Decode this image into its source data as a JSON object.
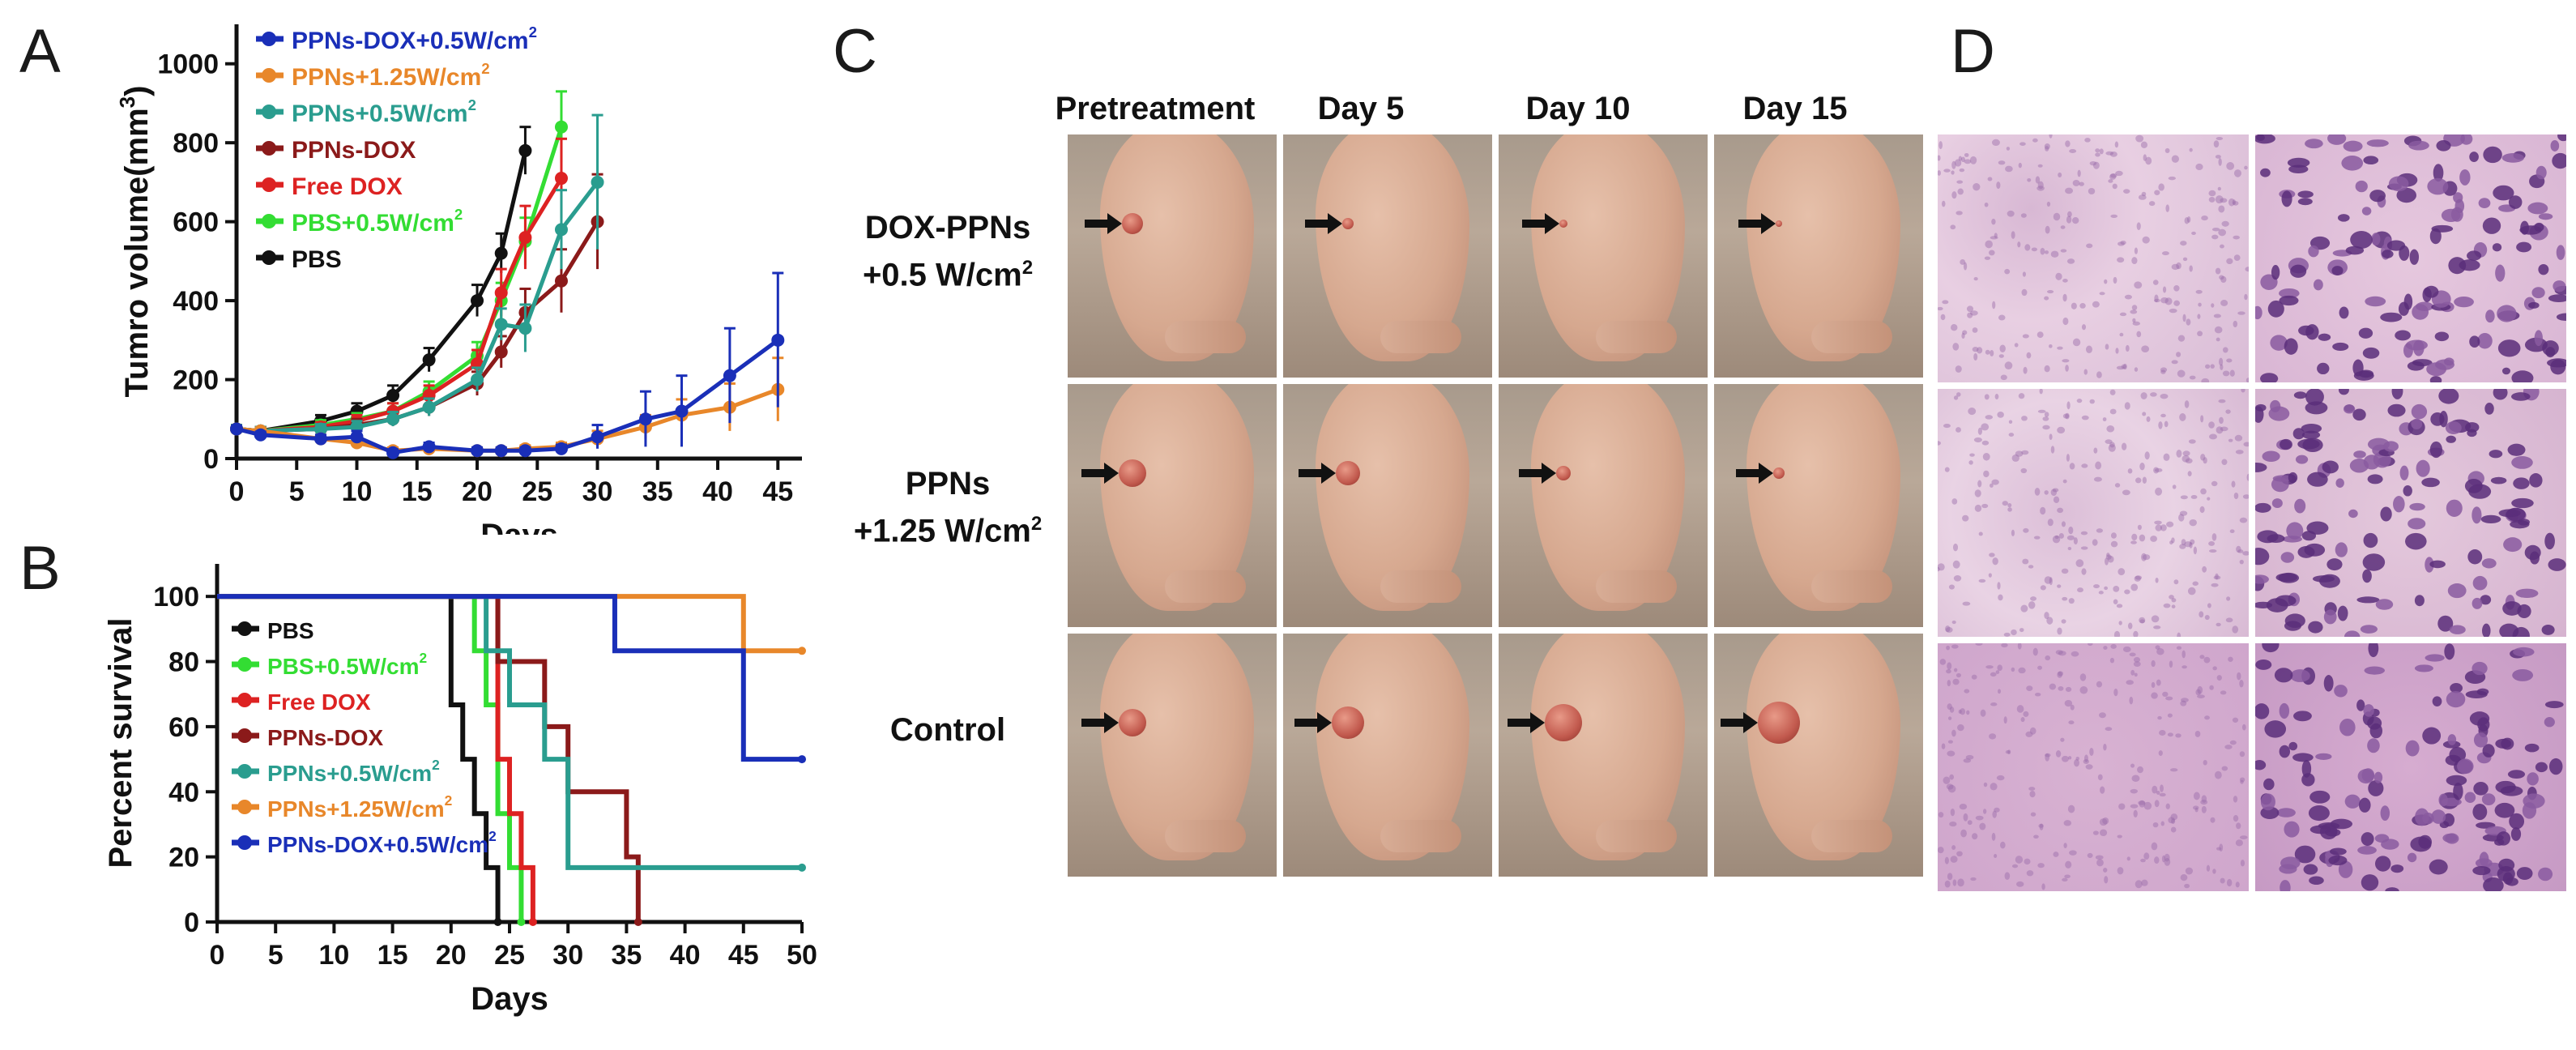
{
  "panels": {
    "a": "A",
    "b": "B",
    "c": "C",
    "d": "D"
  },
  "colors": {
    "PBS": "#111111",
    "PBS+0.5W/cm2": "#33dd33",
    "Free DOX": "#dd2222",
    "PPNs-DOX": "#8b1a1a",
    "PPNs+0.5W/cm2": "#2a9d8f",
    "PPNs+1.25W/cm2": "#e8872a",
    "PPNs-DOX+0.5W/cm2": "#1a2fb8"
  },
  "chart_data": [
    {
      "type": "line",
      "xlabel": "Days",
      "ylabel": "Tumro volume(mm",
      "ylabel_sup": "3",
      "ylabel_close": ")",
      "xlim": [
        0,
        47
      ],
      "ylim": [
        0,
        1100
      ],
      "xticks": [
        "0",
        "5",
        "10",
        "15",
        "20",
        "25",
        "30",
        "35",
        "40",
        "45"
      ],
      "yticks": [
        "0",
        "200",
        "400",
        "600",
        "800",
        "1000"
      ],
      "legend": [
        {
          "base": "PPNs-DOX+0.5W/cm",
          "sup": "2",
          "series": "PPNs-DOX+0.5W/cm2"
        },
        {
          "base": "PPNs+1.25W/cm",
          "sup": "2",
          "series": "PPNs+1.25W/cm2"
        },
        {
          "base": "PPNs+0.5W/cm",
          "sup": "2",
          "series": "PPNs+0.5W/cm2"
        },
        {
          "base": "PPNs-DOX",
          "sup": "",
          "series": "PPNs-DOX"
        },
        {
          "base": "Free DOX",
          "sup": "",
          "series": "Free DOX"
        },
        {
          "base": "PBS+0.5W/cm",
          "sup": "2",
          "series": "PBS+0.5W/cm2"
        },
        {
          "base": "PBS",
          "sup": "",
          "series": "PBS"
        }
      ],
      "series": [
        {
          "key": "PBS",
          "x": [
            0,
            2,
            7,
            10,
            13,
            16,
            20,
            22,
            24
          ],
          "y": [
            75,
            70,
            95,
            120,
            160,
            250,
            400,
            520,
            780
          ],
          "err": [
            10,
            10,
            15,
            20,
            25,
            30,
            40,
            50,
            60
          ]
        },
        {
          "key": "PBS+0.5W/cm2",
          "x": [
            0,
            2,
            7,
            10,
            13,
            16,
            20,
            22,
            24,
            27
          ],
          "y": [
            75,
            70,
            85,
            100,
            120,
            170,
            260,
            400,
            550,
            840
          ],
          "err": [
            10,
            10,
            12,
            15,
            20,
            25,
            35,
            45,
            60,
            90
          ]
        },
        {
          "key": "Free DOX",
          "x": [
            0,
            2,
            7,
            10,
            13,
            16,
            20,
            22,
            24,
            27
          ],
          "y": [
            75,
            70,
            80,
            95,
            120,
            160,
            240,
            420,
            560,
            710
          ],
          "err": [
            10,
            10,
            12,
            15,
            20,
            25,
            35,
            60,
            80,
            100
          ]
        },
        {
          "key": "PPNs-DOX",
          "x": [
            0,
            2,
            7,
            10,
            13,
            16,
            20,
            22,
            24,
            27,
            30
          ],
          "y": [
            75,
            70,
            75,
            85,
            100,
            130,
            190,
            270,
            370,
            450,
            600
          ],
          "err": [
            10,
            10,
            12,
            15,
            18,
            22,
            30,
            40,
            60,
            80,
            120
          ]
        },
        {
          "key": "PPNs+0.5W/cm2",
          "x": [
            0,
            2,
            7,
            10,
            13,
            16,
            20,
            22,
            24,
            27,
            30
          ],
          "y": [
            75,
            70,
            75,
            80,
            100,
            130,
            200,
            340,
            330,
            580,
            700
          ],
          "err": [
            10,
            10,
            12,
            15,
            18,
            22,
            30,
            40,
            60,
            100,
            170
          ]
        },
        {
          "key": "PPNs+1.25W/cm2",
          "x": [
            0,
            2,
            7,
            10,
            13,
            16,
            20,
            22,
            24,
            27,
            30,
            34,
            37,
            41,
            45
          ],
          "y": [
            75,
            70,
            50,
            40,
            20,
            25,
            20,
            20,
            25,
            30,
            50,
            80,
            110,
            130,
            175
          ],
          "err": [
            8,
            8,
            10,
            10,
            8,
            8,
            8,
            8,
            8,
            10,
            20,
            30,
            40,
            60,
            80
          ]
        },
        {
          "key": "PPNs-DOX+0.5W/cm2",
          "x": [
            0,
            2,
            7,
            10,
            13,
            16,
            20,
            22,
            24,
            27,
            30,
            34,
            37,
            41,
            45
          ],
          "y": [
            75,
            60,
            50,
            55,
            15,
            30,
            20,
            20,
            20,
            25,
            55,
            100,
            120,
            210,
            300
          ],
          "err": [
            8,
            8,
            10,
            15,
            8,
            10,
            8,
            8,
            8,
            10,
            30,
            70,
            90,
            120,
            170
          ]
        }
      ]
    },
    {
      "type": "line",
      "step": true,
      "xlabel": "Days",
      "ylabel": "Percent survival",
      "xlim": [
        0,
        50
      ],
      "ylim": [
        0,
        110
      ],
      "xticks": [
        "0",
        "5",
        "10",
        "15",
        "20",
        "25",
        "30",
        "35",
        "40",
        "45",
        "50"
      ],
      "yticks": [
        "0",
        "20",
        "40",
        "60",
        "80",
        "100"
      ],
      "legend": [
        {
          "base": "PBS",
          "sup": "",
          "series": "PBS"
        },
        {
          "base": "PBS+0.5W/cm",
          "sup": "2",
          "series": "PBS+0.5W/cm2"
        },
        {
          "base": "Free DOX",
          "sup": "",
          "series": "Free DOX"
        },
        {
          "base": "PPNs-DOX",
          "sup": "",
          "series": "PPNs-DOX"
        },
        {
          "base": "PPNs+0.5W/cm",
          "sup": "2",
          "series": "PPNs+0.5W/cm2"
        },
        {
          "base": "PPNs+1.25W/cm",
          "sup": "2",
          "series": "PPNs+1.25W/cm2"
        },
        {
          "base": "PPNs-DOX+0.5W/cm",
          "sup": "2",
          "series": "PPNs-DOX+0.5W/cm2"
        }
      ],
      "series": [
        {
          "key": "PBS",
          "x": [
            0,
            20,
            21,
            22,
            23,
            24
          ],
          "y": [
            100,
            66.7,
            50,
            33.3,
            16.7,
            0
          ]
        },
        {
          "key": "PBS+0.5W/cm2",
          "x": [
            0,
            22,
            23,
            24,
            25,
            26
          ],
          "y": [
            100,
            83.3,
            66.7,
            33.3,
            16.7,
            0
          ]
        },
        {
          "key": "Free DOX",
          "x": [
            0,
            24,
            25,
            26,
            27
          ],
          "y": [
            100,
            50,
            33.3,
            16.7,
            0
          ]
        },
        {
          "key": "PPNs-DOX",
          "x": [
            0,
            24,
            26,
            28,
            30,
            35,
            36
          ],
          "y": [
            100,
            80,
            80,
            60,
            40,
            20,
            0
          ]
        },
        {
          "key": "PPNs+0.5W/cm2",
          "x": [
            0,
            23,
            25,
            28,
            30,
            50
          ],
          "y": [
            100,
            83.3,
            66.7,
            50,
            16.7,
            16.7
          ]
        },
        {
          "key": "PPNs+1.25W/cm2",
          "x": [
            0,
            45,
            50
          ],
          "y": [
            100,
            83.3,
            83.3
          ]
        },
        {
          "key": "PPNs-DOX+0.5W/cm2",
          "x": [
            0,
            34,
            45,
            50
          ],
          "y": [
            100,
            83.3,
            50,
            50
          ]
        }
      ]
    }
  ],
  "panel_c": {
    "columns": [
      "Pretreatment",
      "Day 5",
      "Day 10",
      "Day 15"
    ],
    "rows": [
      {
        "line1": "DOX-PPNs",
        "line2_base": "+0.5 W/cm",
        "line2_sup": "2"
      },
      {
        "line1": "PPNs",
        "line2_base": "+1.25 W/cm",
        "line2_sup": "2"
      },
      {
        "line1": "Control",
        "line2_base": "",
        "line2_sup": ""
      }
    ]
  }
}
